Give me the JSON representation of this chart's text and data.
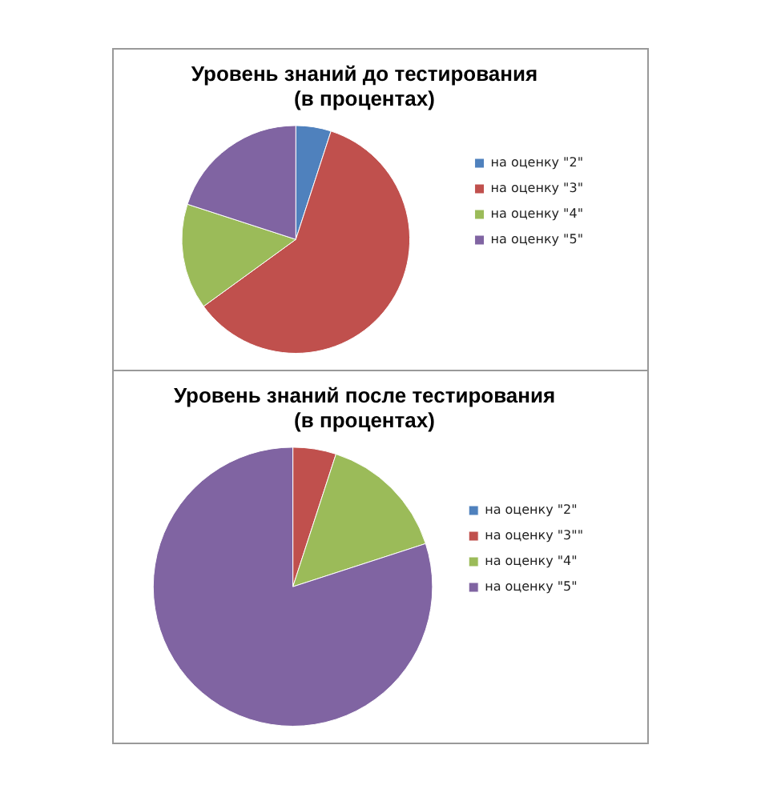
{
  "chart_data": [
    {
      "type": "pie",
      "title": "Уровень знаний до тестирования\n(в процентах)",
      "categories": [
        "на оценку \"2\"",
        "на оценку \"3\"",
        "на оценку \"4\"",
        "на оценку \"5\""
      ],
      "values": [
        5,
        60,
        15,
        20
      ],
      "colors": [
        "#4f81bd",
        "#c0504d",
        "#9bbb59",
        "#8064a2"
      ],
      "legend": "right"
    },
    {
      "type": "pie",
      "title": "Уровень знаний после тестирования\n(в процентах)",
      "categories": [
        "на оценку \"2\"",
        "на оценку \"3\"\"",
        "на оценку \"4\"",
        "на оценку \"5\""
      ],
      "values": [
        0,
        5,
        15,
        80
      ],
      "colors": [
        "#4f81bd",
        "#c0504d",
        "#9bbb59",
        "#8064a2"
      ],
      "legend": "right"
    }
  ]
}
